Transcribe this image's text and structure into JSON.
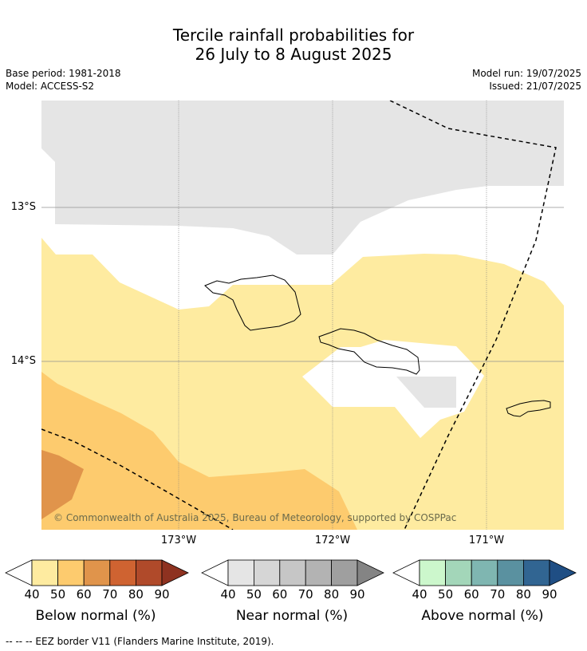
{
  "title": {
    "line1": "Tercile rainfall probabilities for",
    "line2": "26 July to 8 August 2025"
  },
  "meta": {
    "base_period": "Base period: 1981-2018",
    "model": "Model: ACCESS-S2",
    "model_run": "Model run: 19/07/2025",
    "issued": "Issued: 21/07/2025"
  },
  "map": {
    "lat_labels": [
      "13°S",
      "14°S"
    ],
    "lon_labels": [
      "173°W",
      "172°W",
      "171°W"
    ],
    "copyright": "© Commonwealth of Australia 2025, Bureau of Meteorology, supported by COSPPac",
    "colors": {
      "near_normal_40_50": "#e5e5e5",
      "below_40_50": "#feeba0",
      "below_50_60": "#fdcb6e",
      "below_60_70": "#e0944b",
      "coast": "#000000",
      "eez": "#000000"
    }
  },
  "colorbars": [
    {
      "label": "Below normal (%)",
      "ticks": [
        "40",
        "50",
        "60",
        "70",
        "80",
        "90"
      ],
      "colors": [
        "#ffffff",
        "#feeba0",
        "#fdcb6e",
        "#e0944b",
        "#cf6331",
        "#b04a2a",
        "#8e3220"
      ]
    },
    {
      "label": "Near normal (%)",
      "ticks": [
        "40",
        "50",
        "60",
        "70",
        "80",
        "90"
      ],
      "colors": [
        "#ffffff",
        "#e5e5e5",
        "#d6d6d6",
        "#c6c6c6",
        "#b3b3b3",
        "#9f9f9f",
        "#848484"
      ]
    },
    {
      "label": "Above normal (%)",
      "ticks": [
        "40",
        "50",
        "60",
        "70",
        "80",
        "90"
      ],
      "colors": [
        "#ffffff",
        "#ccf7cc",
        "#a3d6b9",
        "#7fb6b1",
        "#5a91a0",
        "#316592",
        "#1f4e84"
      ]
    }
  ],
  "footnote": "--  --  -- EEZ border V11 (Flanders Marine Institute, 2019)."
}
